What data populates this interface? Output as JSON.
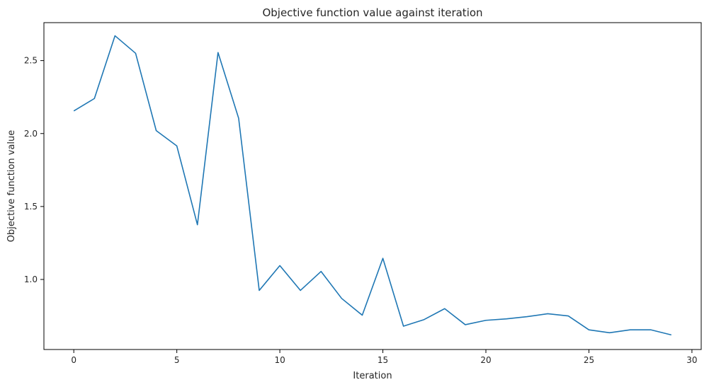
{
  "chart_data": {
    "type": "line",
    "title": "Objective function value against iteration",
    "xlabel": "Iteration",
    "ylabel": "Objective function value",
    "xlim": [
      -1.45,
      30.45
    ],
    "ylim": [
      0.52,
      2.76
    ],
    "xticks": [
      0,
      5,
      10,
      15,
      20,
      25,
      30
    ],
    "yticks": [
      1.0,
      1.5,
      2.0,
      2.5
    ],
    "ytick_labels": [
      "1.0",
      "1.5",
      "2.0",
      "2.5"
    ],
    "grid": false,
    "series": [
      {
        "color": "#1f77b4",
        "x": [
          0,
          1,
          2,
          3,
          4,
          5,
          6,
          7,
          8,
          9,
          10,
          11,
          12,
          13,
          14,
          15,
          16,
          17,
          18,
          19,
          20,
          21,
          22,
          23,
          24,
          25,
          26,
          27,
          28,
          29
        ],
        "y": [
          2.155,
          2.24,
          2.67,
          2.55,
          2.02,
          1.915,
          1.375,
          2.555,
          2.105,
          0.925,
          1.095,
          0.925,
          1.055,
          0.87,
          0.755,
          1.145,
          0.68,
          0.725,
          0.8,
          0.69,
          0.72,
          0.73,
          0.745,
          0.765,
          0.75,
          0.655,
          0.635,
          0.655,
          0.655,
          0.62
        ]
      }
    ]
  }
}
